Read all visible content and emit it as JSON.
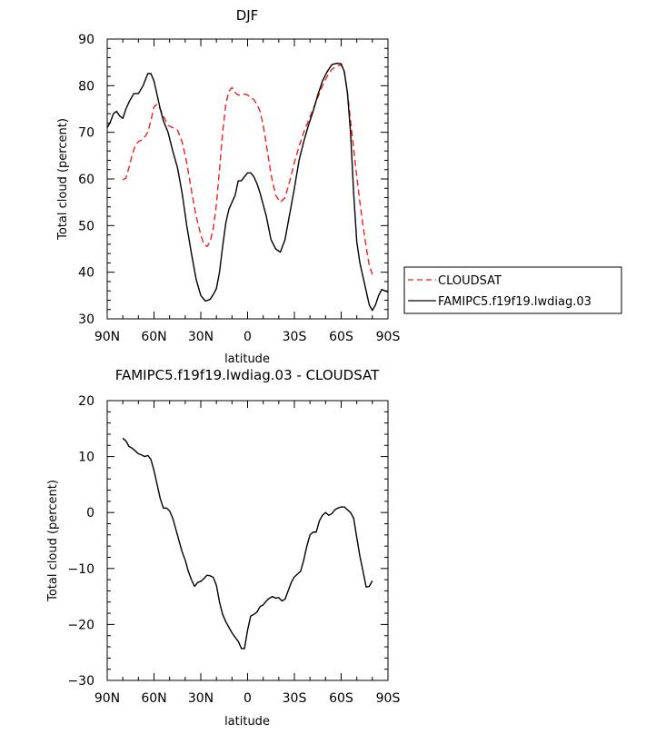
{
  "chart_data": [
    {
      "type": "line",
      "title": "DJF",
      "xlabel": "latitude",
      "ylabel": "Total cloud (percent)",
      "xlim": [
        90,
        -90
      ],
      "ylim": [
        30,
        90
      ],
      "xticks": [
        90,
        60,
        30,
        0,
        -30,
        -60,
        -90
      ],
      "xtick_labels": [
        "90N",
        "60N",
        "30N",
        "0",
        "30S",
        "60S",
        "90S"
      ],
      "yticks": [
        30,
        40,
        50,
        60,
        70,
        80,
        90
      ],
      "ytick_labels": [
        "30",
        "40",
        "50",
        "60",
        "70",
        "80",
        "90"
      ],
      "legend_position": "outside-right",
      "series": [
        {
          "name": "CLOUDSAT",
          "color": "#e8231f",
          "dash": "dashed",
          "x": [
            80,
            78,
            76,
            74,
            72,
            70,
            67,
            64,
            62,
            60,
            58,
            56,
            54,
            51,
            48,
            45,
            42,
            39,
            36,
            33,
            30,
            28,
            26,
            24,
            22,
            20,
            18,
            16,
            14,
            12,
            10,
            8,
            6,
            4,
            2,
            0,
            -2,
            -4,
            -6,
            -8,
            -10,
            -12,
            -15,
            -18,
            -21,
            -24,
            -27,
            -30,
            -33,
            -36,
            -39,
            -42,
            -45,
            -48,
            -51,
            -54,
            -57,
            -60,
            -62,
            -64,
            -66,
            -68,
            -70,
            -72,
            -74,
            -76,
            -78,
            -80
          ],
          "y": [
            59.8,
            60.2,
            62.5,
            65.2,
            67.2,
            68.0,
            68.5,
            70.0,
            72.5,
            75.5,
            76.0,
            75.0,
            73.5,
            71.5,
            71.0,
            70.5,
            68.0,
            63.5,
            57.5,
            52.0,
            48.0,
            46.0,
            45.5,
            46.5,
            49.5,
            54.5,
            62.0,
            70.0,
            76.0,
            78.8,
            79.6,
            78.5,
            78.0,
            78.0,
            78.2,
            78.0,
            77.5,
            77.0,
            76.0,
            74.5,
            71.5,
            67.5,
            61.0,
            56.5,
            55.0,
            56.0,
            59.5,
            63.5,
            67.0,
            70.0,
            72.5,
            75.0,
            77.5,
            80.0,
            82.0,
            83.5,
            84.2,
            84.5,
            83.0,
            78.5,
            72.5,
            66.5,
            60.5,
            55.0,
            50.0,
            45.5,
            41.5,
            39.5
          ]
        },
        {
          "name": "FAMIPC5.f19f19.lwdiag.03",
          "color": "#000000",
          "dash": "solid",
          "x": [
            90,
            88,
            86,
            84,
            82,
            80,
            78,
            76,
            73,
            70,
            67,
            64,
            62,
            60,
            58,
            56,
            54,
            51,
            48,
            45,
            42,
            39,
            36,
            33,
            30,
            27,
            24,
            22,
            20,
            18,
            16,
            14,
            12,
            10,
            8,
            6,
            4,
            2,
            0,
            -2,
            -4,
            -6,
            -8,
            -10,
            -12,
            -15,
            -18,
            -21,
            -24,
            -27,
            -30,
            -33,
            -36,
            -39,
            -42,
            -45,
            -48,
            -51,
            -54,
            -57,
            -60,
            -62,
            -64,
            -66,
            -68,
            -70,
            -72,
            -74,
            -76,
            -78,
            -80,
            -82,
            -84,
            -86,
            -88,
            -90
          ],
          "y": [
            71.0,
            72.2,
            74.0,
            74.5,
            73.5,
            73.0,
            75.0,
            76.5,
            78.3,
            78.3,
            80.0,
            82.6,
            82.6,
            81.0,
            78.0,
            75.0,
            72.5,
            70.0,
            66.0,
            62.5,
            57.0,
            50.0,
            44.0,
            38.5,
            35.0,
            33.8,
            34.2,
            35.2,
            36.5,
            40.0,
            45.5,
            50.5,
            53.5,
            55.0,
            56.5,
            59.6,
            59.6,
            60.5,
            61.3,
            61.3,
            60.5,
            59.0,
            57.0,
            54.5,
            52.0,
            47.0,
            45.0,
            44.3,
            47.0,
            52.5,
            58.0,
            64.0,
            68.0,
            71.5,
            74.5,
            78.0,
            81.0,
            83.0,
            84.5,
            84.8,
            84.7,
            83.0,
            78.5,
            70.0,
            57.0,
            46.5,
            42.0,
            39.0,
            36.0,
            33.0,
            31.8,
            33.0,
            35.0,
            36.3,
            36.0,
            35.8
          ]
        }
      ]
    },
    {
      "type": "line",
      "title": "FAMIPC5.f19f19.lwdiag.03 - CLOUDSAT",
      "xlabel": "latitude",
      "ylabel": "Total cloud (percent)",
      "xlim": [
        90,
        -90
      ],
      "ylim": [
        -30,
        20
      ],
      "xticks": [
        90,
        60,
        30,
        0,
        -30,
        -60,
        -90
      ],
      "xtick_labels": [
        "90N",
        "60N",
        "30N",
        "0",
        "30S",
        "60S",
        "90S"
      ],
      "yticks": [
        -30,
        -20,
        -10,
        0,
        10,
        20
      ],
      "ytick_labels": [
        "−30",
        "−20",
        "−10",
        "0",
        "10",
        "20"
      ],
      "series": [
        {
          "color": "#000000",
          "x": [
            80,
            79,
            78,
            76,
            74,
            72,
            70,
            68,
            66,
            64,
            62,
            60,
            58,
            56,
            54,
            52,
            50,
            48,
            46,
            44,
            42,
            40,
            38,
            36,
            34,
            32,
            30,
            28,
            26,
            24,
            22,
            20,
            18,
            16,
            14,
            12,
            10,
            8,
            6,
            4,
            2,
            0,
            -2,
            -4,
            -6,
            -8,
            -10,
            -12,
            -14,
            -16,
            -18,
            -20,
            -22,
            -24,
            -26,
            -28,
            -30,
            -32,
            -34,
            -36,
            -38,
            -40,
            -42,
            -44,
            -46,
            -48,
            -50,
            -52,
            -54,
            -56,
            -58,
            -60,
            -62,
            -64,
            -66,
            -68,
            -70,
            -72,
            -74,
            -76,
            -78,
            -80
          ],
          "y": [
            13.3,
            13.0,
            12.8,
            11.8,
            11.5,
            11.0,
            10.5,
            10.3,
            10.0,
            10.2,
            9.5,
            7.5,
            5.0,
            2.5,
            0.8,
            0.8,
            0.3,
            -1.0,
            -3.0,
            -5.0,
            -7.0,
            -8.5,
            -10.5,
            -12.0,
            -13.2,
            -12.5,
            -12.3,
            -11.8,
            -11.2,
            -11.3,
            -11.6,
            -13.0,
            -16.0,
            -18.2,
            -19.5,
            -20.5,
            -21.5,
            -22.3,
            -23.0,
            -24.3,
            -24.3,
            -21.0,
            -18.5,
            -18.2,
            -17.8,
            -16.8,
            -16.5,
            -15.8,
            -15.3,
            -15.0,
            -15.3,
            -15.2,
            -15.8,
            -15.5,
            -14.0,
            -12.5,
            -11.5,
            -11.0,
            -10.5,
            -8.5,
            -6.0,
            -4.0,
            -3.5,
            -3.5,
            -1.5,
            -0.5,
            0.0,
            -0.5,
            -0.2,
            0.5,
            0.8,
            1.0,
            1.0,
            0.5,
            0.0,
            -1.0,
            -4.5,
            -7.8,
            -10.5,
            -13.3,
            -13.2,
            -12.2
          ]
        }
      ]
    }
  ]
}
